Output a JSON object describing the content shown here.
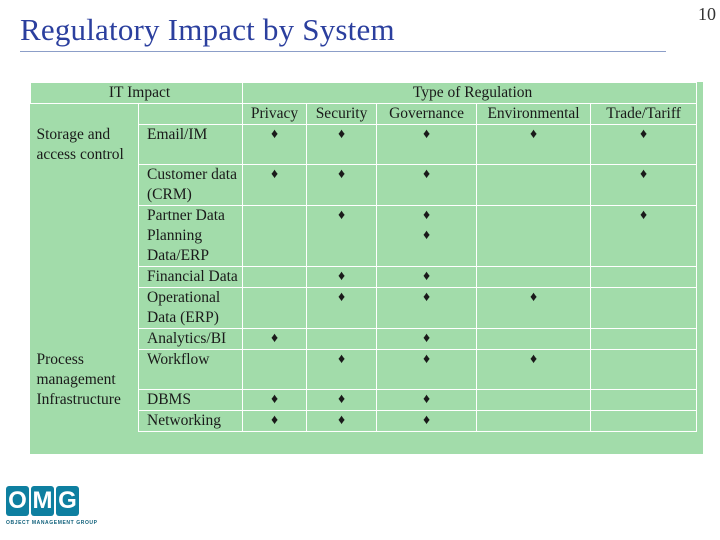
{
  "slide": {
    "title": "Regulatory Impact by System",
    "page_number": "10"
  },
  "table": {
    "header_it": "IT Impact",
    "header_type": "Type of Regulation",
    "columns": [
      "Privacy",
      "Security",
      "Governance",
      "Environmental",
      "Trade/Tariff"
    ],
    "mark": "♦",
    "rows": [
      {
        "category": "Storage and access control",
        "system": "Email/IM",
        "marks": [
          "♦",
          "♦",
          "♦",
          "♦",
          "♦"
        ]
      },
      {
        "category": "",
        "system": "Customer data (CRM)",
        "marks": [
          "♦",
          "♦",
          "♦",
          "",
          "♦"
        ]
      },
      {
        "category": "",
        "system": "Partner Data Planning Data/ERP",
        "marks": [
          "",
          "♦",
          "♦ ♦",
          "",
          "♦"
        ]
      },
      {
        "category": "",
        "system": "Financial Data",
        "marks": [
          "",
          "♦",
          "♦",
          "",
          ""
        ]
      },
      {
        "category": "",
        "system": "Operational Data (ERP)",
        "marks": [
          "",
          "♦",
          "♦",
          "♦",
          ""
        ]
      },
      {
        "category": "",
        "system": "Analytics/BI",
        "marks": [
          "♦",
          "",
          "♦",
          "",
          ""
        ]
      },
      {
        "category": "Process management",
        "system": "Workflow",
        "marks": [
          "",
          "♦",
          "♦",
          "♦",
          ""
        ]
      },
      {
        "category": "Infrastructure",
        "system": "DBMS",
        "marks": [
          "♦",
          "♦",
          "♦",
          "",
          ""
        ]
      },
      {
        "category": "",
        "system": "Networking",
        "marks": [
          "♦",
          "♦",
          "♦",
          "",
          ""
        ]
      }
    ]
  },
  "logo": {
    "letters": [
      "O",
      "M",
      "G"
    ],
    "tagline": "OBJECT MANAGEMENT GROUP"
  }
}
